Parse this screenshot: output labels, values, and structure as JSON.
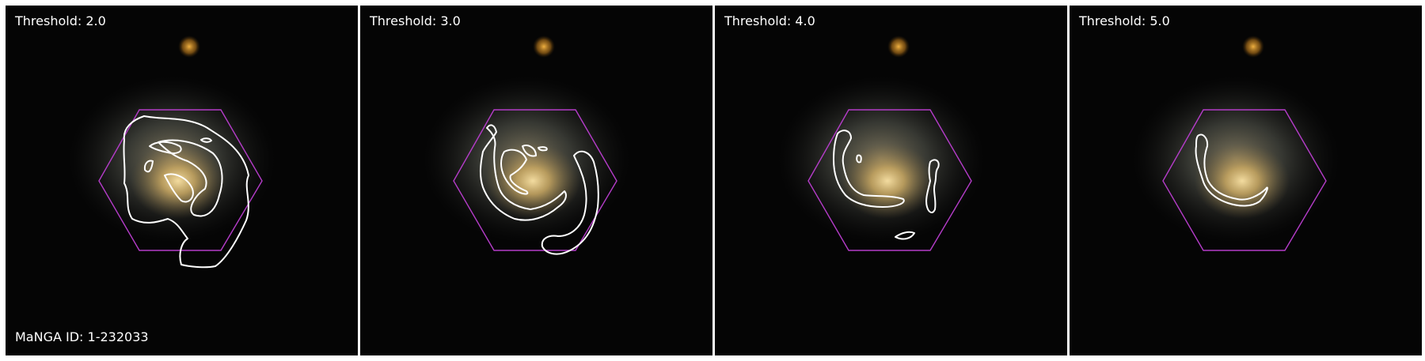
{
  "panels": [
    {
      "threshold_label": "Threshold: 2.0"
    },
    {
      "threshold_label": "Threshold: 3.0"
    },
    {
      "threshold_label": "Threshold: 4.0"
    },
    {
      "threshold_label": "Threshold: 5.0"
    }
  ],
  "galaxy_id_label": "MaNGA ID: 1-232033",
  "colors": {
    "background": "#050505",
    "hexagon": "#b43cc8",
    "contour": "#ffffff",
    "galaxy_core": "#e6c878",
    "companion": "#d79628"
  }
}
